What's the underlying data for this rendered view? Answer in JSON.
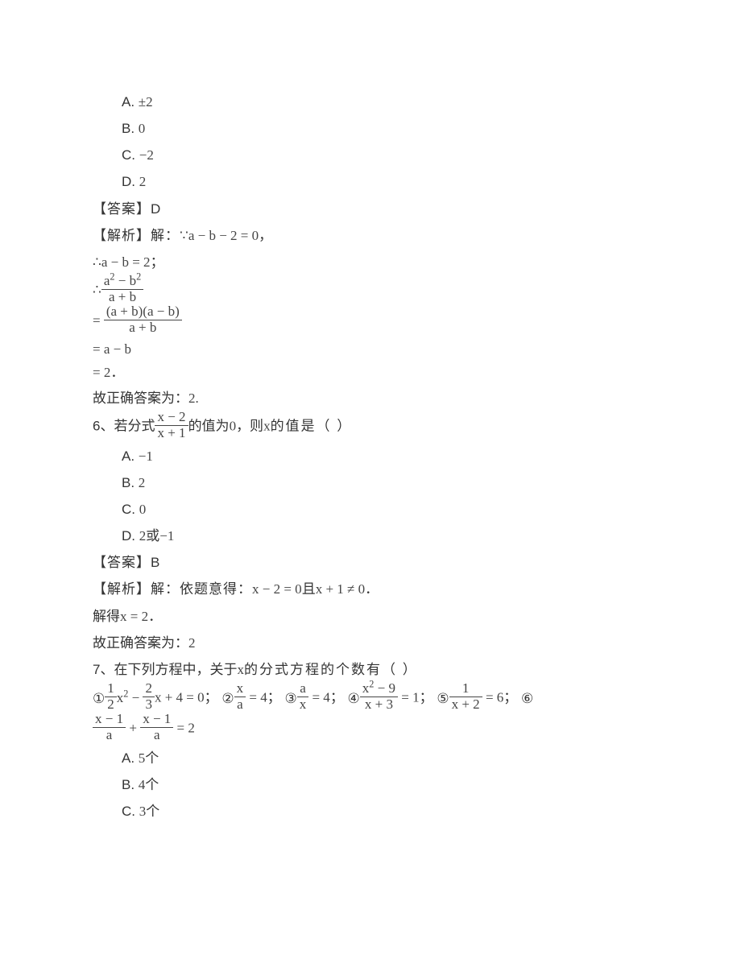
{
  "q5_continued": {
    "options": {
      "a": {
        "label": "A.",
        "value": "±2"
      },
      "b": {
        "label": "B.",
        "value": "0"
      },
      "c": {
        "label": "C.",
        "value": "−2"
      },
      "d": {
        "label": "D.",
        "value": "2"
      }
    },
    "answer": {
      "label": "【答案】",
      "value": "D"
    },
    "solution": {
      "intro": "【解析】解：",
      "because": "∵",
      "eq_given": "a − b − 2 = 0",
      "comma": "，",
      "therefore1": "∴",
      "eq_deduced": "a − b = 2",
      "semicolon": "；",
      "therefore2": "∴",
      "frac1_num": "a",
      "frac1_num_sup": "2",
      "frac1_num_mid": " − b",
      "frac1_num_sup2": "2",
      "frac1_den": "a + b",
      "eq_sign": "= ",
      "frac2_num": "(a + b)(a − b)",
      "frac2_den": "a + b",
      "eq_line3": "= a − b",
      "eq_line4": "= 2",
      "period": "．",
      "conclusion_pre": "故正确答案为：",
      "conclusion_val": "2."
    }
  },
  "q6": {
    "number": "6、",
    "stem_pre": "若分式",
    "frac_num": "x − 2",
    "frac_den": "x + 1",
    "stem_mid": "的值为",
    "zero": "0",
    "stem_post": "，则",
    "xvar": "x",
    "stem_tail": "的值是（        ）",
    "options": {
      "a": {
        "label": "A.",
        "value": "−1"
      },
      "b": {
        "label": "B.",
        "value": "2"
      },
      "c": {
        "label": "C.",
        "value": "0"
      },
      "d": {
        "label": "D.",
        "value_pre": "2",
        "value_mid": "或",
        "value_post": "−1"
      }
    },
    "answer": {
      "label": "【答案】",
      "value": "B"
    },
    "solution": {
      "intro": "【解析】解：依题意得：",
      "eq1": "x − 2 = 0",
      "and": "且",
      "eq2": "x + 1 ≠ 0",
      "period": "．",
      "solve_pre": "解得",
      "solve_eq": "x = 2",
      "conclusion_pre": "故正确答案为：",
      "conclusion_val": "2"
    }
  },
  "q7": {
    "number": "7、",
    "stem_pre": "在下列方程中，关于",
    "xvar": "x",
    "stem_post": "的分式方程的个数有（        ）",
    "items": {
      "c1": "①",
      "eq1_f1n": "1",
      "eq1_f1d": "2",
      "eq1_mid1": "x",
      "eq1_sup1": "2",
      "eq1_mid2": " − ",
      "eq1_f2n": "2",
      "eq1_f2d": "3",
      "eq1_mid3": "x + 4 = 0",
      "c2": "②",
      "eq2_fn": "x",
      "eq2_fd": "a",
      "eq2_tail": " = 4",
      "c3": "③",
      "eq3_fn": "a",
      "eq3_fd": "x",
      "eq3_tail": " = 4",
      "c4": "④",
      "eq4_fn_a": "x",
      "eq4_fn_sup": "2",
      "eq4_fn_b": " − 9",
      "eq4_fd": "x + 3",
      "eq4_tail": " = 1",
      "c5": "⑤",
      "eq5_fn": "1",
      "eq5_fd": "x + 2",
      "eq5_tail": " = 6",
      "c6": "⑥",
      "eq6_f1n": "x − 1",
      "eq6_f1d": "a",
      "eq6_mid": " + ",
      "eq6_f2n": "x − 1",
      "eq6_f2d": "a",
      "eq6_tail": " = 2",
      "sep": "；"
    },
    "options": {
      "a": {
        "label": "A.",
        "value": "5",
        "unit": "个"
      },
      "b": {
        "label": "B.",
        "value": "4",
        "unit": "个"
      },
      "c": {
        "label": "C.",
        "value": "3",
        "unit": "个"
      }
    }
  }
}
